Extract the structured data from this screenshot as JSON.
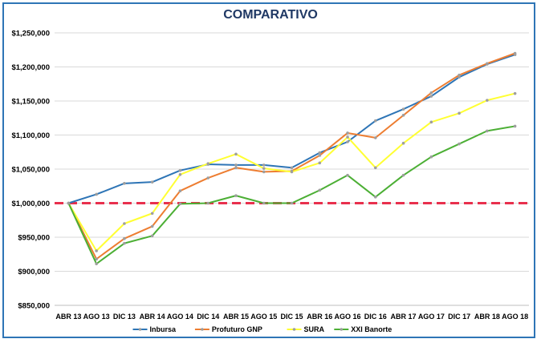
{
  "chart_data": {
    "type": "line",
    "title": "COMPARATIVO",
    "categories": [
      "ABR 13",
      "AGO 13",
      "DIC 13",
      "ABR 14",
      "AGO 14",
      "DIC 14",
      "ABR 15",
      "AGO 15",
      "DIC 15",
      "ABR 16",
      "AGO 16",
      "DIC 16",
      "ABR 17",
      "AGO 17",
      "DIC 17",
      "ABR 18",
      "AGO 18"
    ],
    "ylim": [
      850000,
      1250000
    ],
    "yticks": [
      850000,
      900000,
      950000,
      1000000,
      1050000,
      1100000,
      1150000,
      1200000,
      1250000
    ],
    "ytick_labels": [
      "$850,000",
      "$900,000",
      "$950,000",
      "$1,000,000",
      "$1,050,000",
      "$1,100,000",
      "$1,150,000",
      "$1,200,000",
      "$1,250,000"
    ],
    "reference_line": {
      "value": 1000000,
      "color": "#e8304d",
      "style": "dashed"
    },
    "grid": "horizontal",
    "legend_position": "bottom",
    "series": [
      {
        "name": "Inbursa",
        "color": "#2e75b6",
        "values": [
          1000000,
          1013000,
          1029000,
          1031000,
          1048000,
          1057000,
          1056000,
          1056000,
          1052000,
          1074000,
          1090000,
          1121000,
          1138000,
          1157000,
          1185000,
          1204000,
          1218000
        ]
      },
      {
        "name": "Profuturo GNP",
        "color": "#ed7d31",
        "values": [
          1000000,
          918000,
          948000,
          966000,
          1018000,
          1037000,
          1052000,
          1046000,
          1047000,
          1070000,
          1103000,
          1096000,
          1129000,
          1162000,
          1188000,
          1205000,
          1220000
        ]
      },
      {
        "name": "SURA",
        "color": "#ffff33",
        "values": [
          1000000,
          930000,
          970000,
          985000,
          1042000,
          1058000,
          1072000,
          1051000,
          1046000,
          1059000,
          1097000,
          1052000,
          1088000,
          1119000,
          1132000,
          1151000,
          1161000
        ]
      },
      {
        "name": "XXI Banorte",
        "color": "#4caf35",
        "values": [
          1000000,
          911000,
          941000,
          952000,
          999000,
          1000000,
          1011000,
          1000000,
          1000000,
          1019000,
          1041000,
          1009000,
          1041000,
          1068000,
          1087000,
          1106000,
          1113000
        ]
      }
    ]
  }
}
